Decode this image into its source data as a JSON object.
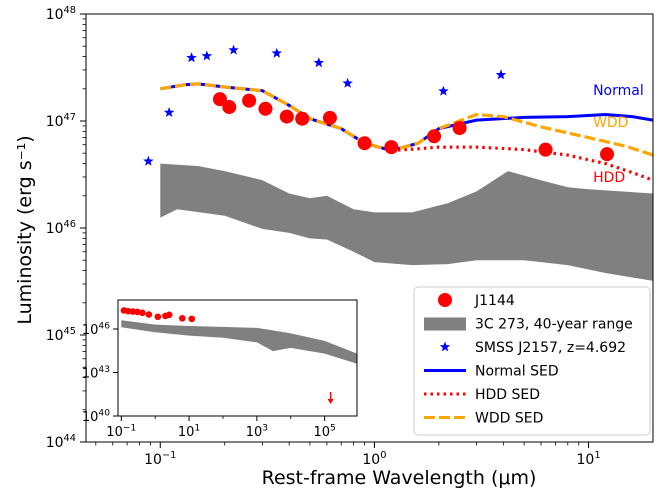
{
  "chart_data": [
    {
      "type": "scatter",
      "xlabel": "Rest-frame Wavelength (μm)",
      "ylabel": "Luminosity (erg s⁻¹)",
      "xscale": "log",
      "yscale": "log",
      "xlim": [
        0.045,
        20
      ],
      "ylim": [
        1e+44,
        1e+48
      ],
      "grid": false,
      "legend_position": "bottom-right",
      "x_ticks": [
        {
          "value": 0.1,
          "base": "10",
          "exp": "−1"
        },
        {
          "value": 1,
          "base": "10",
          "exp": "0"
        },
        {
          "value": 10,
          "base": "10",
          "exp": "1"
        }
      ],
      "y_ticks": [
        {
          "value": 1e+44,
          "base": "10",
          "exp": "44"
        },
        {
          "value": 1e+45,
          "base": "10",
          "exp": "45"
        },
        {
          "value": 1e+46,
          "base": "10",
          "exp": "46"
        },
        {
          "value": 1e+47,
          "base": "10",
          "exp": "47"
        },
        {
          "value": 1e+48,
          "base": "10",
          "exp": "48"
        }
      ],
      "series": [
        {
          "name": "J1144",
          "kind": "points",
          "marker": "circle",
          "color": "#ff0000",
          "points": [
            [
              0.19,
              1.6e+47
            ],
            [
              0.21,
              1.35e+47
            ],
            [
              0.26,
              1.55e+47
            ],
            [
              0.31,
              1.3e+47
            ],
            [
              0.39,
              1.1e+47
            ],
            [
              0.46,
              1.05e+47
            ],
            [
              0.62,
              1.07e+47
            ],
            [
              0.9,
              6.2e+46
            ],
            [
              1.2,
              5.7e+46
            ],
            [
              1.9,
              7.2e+46
            ],
            [
              2.5,
              8.6e+46
            ],
            [
              6.3,
              5.4e+46
            ],
            [
              12.2,
              4.9e+46
            ]
          ]
        },
        {
          "name": "3C 273, 40-year range",
          "kind": "band",
          "color": "#808080",
          "upper": [
            [
              0.1,
              4e+46
            ],
            [
              0.15,
              3.8e+46
            ],
            [
              0.2,
              3.4e+46
            ],
            [
              0.3,
              2.8e+46
            ],
            [
              0.4,
              2.1e+46
            ],
            [
              0.5,
              1.9e+46
            ],
            [
              0.6,
              2e+46
            ],
            [
              0.8,
              1.5e+46
            ],
            [
              1,
              1.4e+46
            ],
            [
              1.5,
              1.4e+46
            ],
            [
              2.2,
              1.7e+46
            ],
            [
              3,
              2.2e+46
            ],
            [
              4.2,
              3.4e+46
            ],
            [
              6,
              2.8e+46
            ],
            [
              8,
              2.4e+46
            ],
            [
              10,
              2.3e+46
            ],
            [
              20,
              2.1e+46
            ]
          ],
          "lower": [
            [
              0.1,
              1.25e+46
            ],
            [
              0.12,
              1.5e+46
            ],
            [
              0.2,
              1.3e+46
            ],
            [
              0.3,
              9.8e+45
            ],
            [
              0.4,
              9e+45
            ],
            [
              0.5,
              8e+45
            ],
            [
              0.6,
              7.8e+45
            ],
            [
              0.8,
              6e+45
            ],
            [
              1,
              4.8e+45
            ],
            [
              1.5,
              4.5e+45
            ],
            [
              2.2,
              4.6e+45
            ],
            [
              3,
              5e+45
            ],
            [
              5,
              5e+45
            ],
            [
              8,
              4.5e+45
            ],
            [
              12,
              3.8e+45
            ],
            [
              20,
              3.2e+45
            ]
          ]
        },
        {
          "name": "SMSS J2157, z=4.692",
          "kind": "points",
          "marker": "star",
          "color": "#0000ff",
          "points": [
            [
              0.088,
              4.2e+46
            ],
            [
              0.11,
              1.2e+47
            ],
            [
              0.14,
              3.9e+47
            ],
            [
              0.165,
              4.05e+47
            ],
            [
              0.22,
              4.6e+47
            ],
            [
              0.35,
              4.3e+47
            ],
            [
              0.55,
              3.5e+47
            ],
            [
              0.75,
              2.25e+47
            ],
            [
              2.1,
              1.9e+47
            ],
            [
              3.9,
              2.7e+47
            ]
          ]
        },
        {
          "name": "Normal SED",
          "kind": "line",
          "style": "solid",
          "color": "#0000ff",
          "points": [
            [
              0.1,
              2e+47
            ],
            [
              0.13,
              2.18e+47
            ],
            [
              0.15,
              2.22e+47
            ],
            [
              0.2,
              2.08e+47
            ],
            [
              0.3,
              1.92e+47
            ],
            [
              0.4,
              1.4e+47
            ],
            [
              0.5,
              1.05e+47
            ],
            [
              0.7,
              8.5e+46
            ],
            [
              0.9,
              6.2e+46
            ],
            [
              1.2,
              5.3e+46
            ],
            [
              1.6,
              6.2e+46
            ],
            [
              2,
              8.5e+46
            ],
            [
              3,
              1.02e+47
            ],
            [
              5,
              1.08e+47
            ],
            [
              8,
              1.1e+47
            ],
            [
              12,
              1.15e+47
            ],
            [
              16,
              1.1e+47
            ],
            [
              20,
              1.02e+47
            ]
          ]
        },
        {
          "name": "HDD SED",
          "kind": "line",
          "style": "dotted",
          "color": "#ff0000",
          "points": [
            [
              1.2,
              5.3e+46
            ],
            [
              1.6,
              5.5e+46
            ],
            [
              2,
              5.7e+46
            ],
            [
              3,
              5.7e+46
            ],
            [
              5,
              5.4e+46
            ],
            [
              8,
              4.8e+46
            ],
            [
              12,
              4e+46
            ],
            [
              16,
              3.3e+46
            ],
            [
              20,
              2.8e+46
            ]
          ]
        },
        {
          "name": "WDD SED",
          "kind": "line",
          "style": "dashed",
          "color": "#ffa500",
          "points": [
            [
              0.1,
              2e+47
            ],
            [
              0.13,
              2.18e+47
            ],
            [
              0.15,
              2.22e+47
            ],
            [
              0.2,
              2.08e+47
            ],
            [
              0.3,
              1.92e+47
            ],
            [
              0.4,
              1.4e+47
            ],
            [
              0.5,
              1.05e+47
            ],
            [
              0.7,
              8.5e+46
            ],
            [
              0.9,
              6.2e+46
            ],
            [
              1.2,
              5.3e+46
            ],
            [
              1.6,
              6.2e+46
            ],
            [
              2,
              8.5e+46
            ],
            [
              3,
              1.15e+47
            ],
            [
              4,
              1.1e+47
            ],
            [
              6,
              8.8e+46
            ],
            [
              10,
              7e+46
            ],
            [
              15,
              5.8e+46
            ],
            [
              20,
              4.8e+46
            ]
          ]
        }
      ],
      "annotations": [
        {
          "text": "Normal",
          "x": 10.5,
          "y": 1.75e+47,
          "color": "#0000ff"
        },
        {
          "text": "WDD",
          "x": 10.5,
          "y": 8.8e+46,
          "color": "#ffa500"
        },
        {
          "text": "HDD",
          "x": 10.5,
          "y": 2.7e+46,
          "color": "#ff0000"
        }
      ],
      "legend": [
        {
          "label": "J1144",
          "marker": "circle",
          "color": "#ff0000"
        },
        {
          "label": "3C 273, 40-year range",
          "marker": "patch",
          "color": "#808080"
        },
        {
          "label": "SMSS J2157, z=4.692",
          "marker": "star",
          "color": "#0000ff"
        },
        {
          "label": "Normal SED",
          "marker": "solid",
          "color": "#0000ff"
        },
        {
          "label": "HDD SED",
          "marker": "dotted",
          "color": "#ff0000"
        },
        {
          "label": "WDD SED",
          "marker": "dashed",
          "color": "#ffa500"
        }
      ]
    },
    {
      "type": "scatter",
      "role": "inset",
      "xscale": "log",
      "yscale": "log",
      "xlim": [
        0.08,
        900000
      ],
      "ylim": [
        1e+40,
        1e+48
      ],
      "x_ticks": [
        {
          "value": 0.1,
          "base": "10",
          "exp": "−1"
        },
        {
          "value": 10,
          "base": "10",
          "exp": "1"
        },
        {
          "value": 1000,
          "base": "10",
          "exp": "3"
        },
        {
          "value": 100000,
          "base": "10",
          "exp": "5"
        }
      ],
      "y_ticks": [
        {
          "value": 1e+40,
          "base": "10",
          "exp": "40"
        },
        {
          "value": 1e+43,
          "base": "10",
          "exp": "43"
        },
        {
          "value": 1e+46,
          "base": "10",
          "exp": "46"
        }
      ],
      "series": [
        {
          "name": "J1144",
          "kind": "points",
          "marker": "circle",
          "color": "#ff0000",
          "points": [
            [
              0.12,
              1.9e+47
            ],
            [
              0.16,
              1.7e+47
            ],
            [
              0.22,
              1.6e+47
            ],
            [
              0.3,
              1.5e+47
            ],
            [
              0.42,
              1.3e+47
            ],
            [
              0.65,
              1e+47
            ],
            [
              1.2,
              7e+46
            ],
            [
              2,
              8e+46
            ],
            [
              2.6,
              9.5e+46
            ],
            [
              6.3,
              5.5e+46
            ],
            [
              12,
              5e+46
            ]
          ]
        },
        {
          "name": "3C 273, 40-year range",
          "kind": "band",
          "color": "#808080",
          "upper": [
            [
              0.1,
              4e+46
            ],
            [
              1,
              2e+46
            ],
            [
              10,
              1.6e+46
            ],
            [
              100,
              1.4e+46
            ],
            [
              1000,
              1.2e+46
            ],
            [
              3000,
              8e+45
            ],
            [
              10000,
              5e+45
            ],
            [
              100000,
              1.5e+45
            ],
            [
              900000,
              2e+44
            ]
          ],
          "lower": [
            [
              0.1,
              1.3e+46
            ],
            [
              1,
              6e+45
            ],
            [
              10,
              3.5e+45
            ],
            [
              100,
              2.5e+45
            ],
            [
              1000,
              1.2e+45
            ],
            [
              3000,
              3e+44
            ],
            [
              10000,
              5e+44
            ],
            [
              100000,
              2e+44
            ],
            [
              900000,
              4e+43
            ]
          ]
        },
        {
          "name": "J1144 upper limit",
          "kind": "upper_limit",
          "color": "#ff0000",
          "points": [
            [
              150000,
              1.5e+41
            ]
          ]
        }
      ]
    }
  ]
}
